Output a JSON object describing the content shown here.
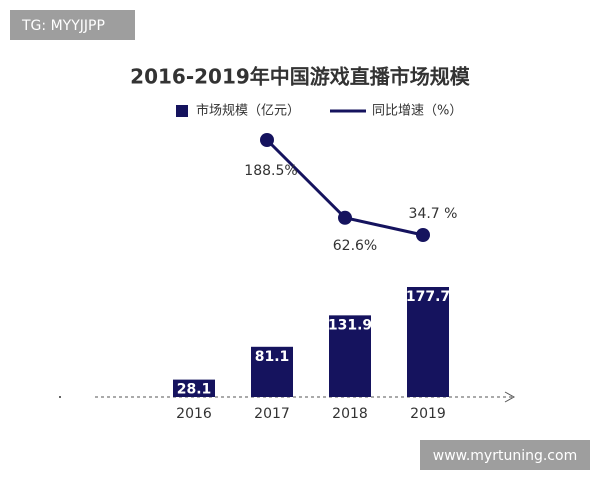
{
  "watermarks": [
    "TG: MYYJJPP",
    "www.myrtuning.com"
  ],
  "chart_data": {
    "type": "bar",
    "title": "2016-2019年中国游戏直播市场规模",
    "categories": [
      "2016",
      "2017",
      "2018",
      "2019"
    ],
    "series": [
      {
        "name": "市场规模（亿元）",
        "type": "bar",
        "color": "#15135e",
        "values": [
          28.1,
          81.1,
          131.9,
          177.7
        ]
      },
      {
        "name": "同比增速（%）",
        "type": "line",
        "color": "#15135e",
        "values": [
          null,
          188.5,
          62.6,
          34.7
        ],
        "value_labels": [
          null,
          "188.5%",
          "62.6%",
          "34.7 %"
        ]
      }
    ]
  }
}
